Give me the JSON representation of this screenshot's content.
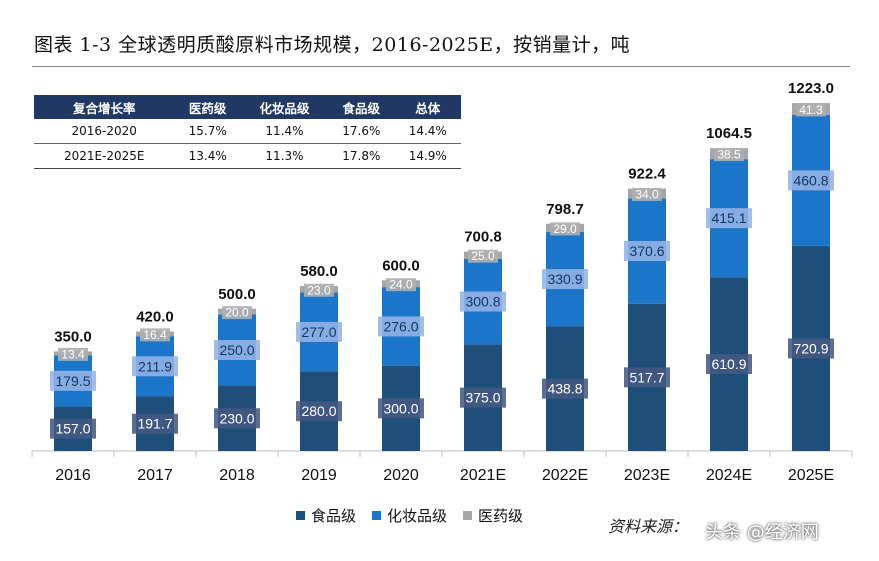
{
  "title": "图表 1-3 全球透明质酸原料市场规模，2016-2025E，按销量计，吨",
  "table": {
    "headers": [
      "复合增长率",
      "医药级",
      "化妆品级",
      "食品级",
      "总体"
    ],
    "rows": [
      [
        "2016-2020",
        "15.7%",
        "11.4%",
        "17.6%",
        "14.4%"
      ],
      [
        "2021E-2025E",
        "13.4%",
        "11.3%",
        "17.8%",
        "14.9%"
      ]
    ]
  },
  "legend": [
    {
      "label": "食品级",
      "color": "#1f4e79"
    },
    {
      "label": "化妆品级",
      "color": "#1b75c9"
    },
    {
      "label": "医药级",
      "color": "#a6a6a6"
    }
  ],
  "source": "资料来源：",
  "watermark": "头条 @经济网",
  "chart_data": {
    "type": "bar",
    "stacked": true,
    "categories": [
      "2016",
      "2017",
      "2018",
      "2019",
      "2020",
      "2021E",
      "2022E",
      "2023E",
      "2024E",
      "2025E"
    ],
    "series": [
      {
        "name": "食品级",
        "values": [
          157.0,
          191.7,
          230.0,
          280.0,
          300.0,
          375.0,
          438.8,
          517.7,
          610.9,
          720.9
        ]
      },
      {
        "name": "化妆品级",
        "values": [
          179.5,
          211.9,
          250.0,
          277.0,
          276.0,
          300.8,
          330.9,
          370.6,
          415.1,
          460.8
        ]
      },
      {
        "name": "医药级",
        "values": [
          13.4,
          16.4,
          20.0,
          23.0,
          24.0,
          25.0,
          29.0,
          34.0,
          38.5,
          41.3
        ]
      }
    ],
    "totals": [
      350.0,
      420.0,
      500.0,
      580.0,
      600.0,
      700.8,
      798.7,
      922.4,
      1064.5,
      1223.0
    ],
    "ylim": [
      0,
      1300
    ],
    "legend_position": "bottom",
    "grid": false
  }
}
